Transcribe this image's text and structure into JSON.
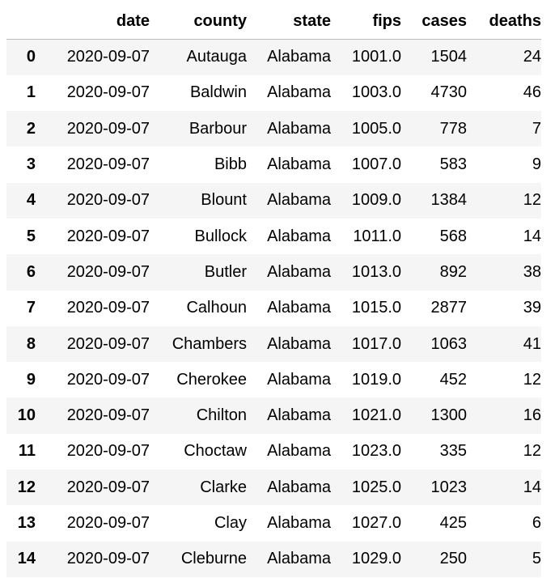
{
  "table": {
    "columns": [
      "",
      "date",
      "county",
      "state",
      "fips",
      "cases",
      "deaths"
    ],
    "rows": [
      [
        "0",
        "2020-09-07",
        "Autauga",
        "Alabama",
        "1001.0",
        "1504",
        "24"
      ],
      [
        "1",
        "2020-09-07",
        "Baldwin",
        "Alabama",
        "1003.0",
        "4730",
        "46"
      ],
      [
        "2",
        "2020-09-07",
        "Barbour",
        "Alabama",
        "1005.0",
        "778",
        "7"
      ],
      [
        "3",
        "2020-09-07",
        "Bibb",
        "Alabama",
        "1007.0",
        "583",
        "9"
      ],
      [
        "4",
        "2020-09-07",
        "Blount",
        "Alabama",
        "1009.0",
        "1384",
        "12"
      ],
      [
        "5",
        "2020-09-07",
        "Bullock",
        "Alabama",
        "1011.0",
        "568",
        "14"
      ],
      [
        "6",
        "2020-09-07",
        "Butler",
        "Alabama",
        "1013.0",
        "892",
        "38"
      ],
      [
        "7",
        "2020-09-07",
        "Calhoun",
        "Alabama",
        "1015.0",
        "2877",
        "39"
      ],
      [
        "8",
        "2020-09-07",
        "Chambers",
        "Alabama",
        "1017.0",
        "1063",
        "41"
      ],
      [
        "9",
        "2020-09-07",
        "Cherokee",
        "Alabama",
        "1019.0",
        "452",
        "12"
      ],
      [
        "10",
        "2020-09-07",
        "Chilton",
        "Alabama",
        "1021.0",
        "1300",
        "16"
      ],
      [
        "11",
        "2020-09-07",
        "Choctaw",
        "Alabama",
        "1023.0",
        "335",
        "12"
      ],
      [
        "12",
        "2020-09-07",
        "Clarke",
        "Alabama",
        "1025.0",
        "1023",
        "14"
      ],
      [
        "13",
        "2020-09-07",
        "Clay",
        "Alabama",
        "1027.0",
        "425",
        "6"
      ],
      [
        "14",
        "2020-09-07",
        "Cleburne",
        "Alabama",
        "1029.0",
        "250",
        "5"
      ]
    ]
  }
}
